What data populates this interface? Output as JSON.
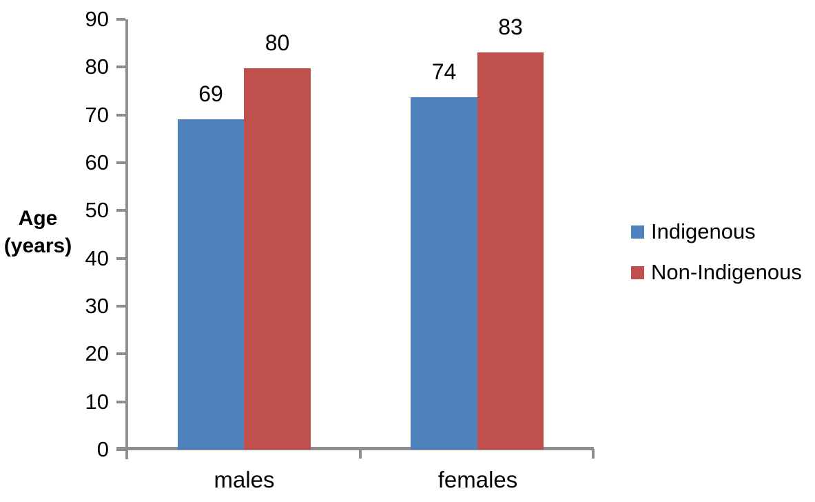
{
  "chart_data": {
    "type": "bar",
    "title": "",
    "categories": [
      "males",
      "females"
    ],
    "series": [
      {
        "name": "Indigenous",
        "color": "#4F81BD",
        "values": [
          69.1,
          73.7
        ],
        "data_labels": [
          "69",
          "74"
        ]
      },
      {
        "name": "Non-Indigenous",
        "color": "#C0504D",
        "values": [
          79.7,
          83.1
        ],
        "data_labels": [
          "80",
          "83"
        ]
      }
    ],
    "xlabel": "",
    "ylabel": "Age (years)",
    "ylabel_lines": [
      "Age",
      "(years)"
    ],
    "ylim": [
      0,
      90
    ],
    "y_tick_step": 10,
    "y_tick_labels": [
      "0",
      "10",
      "20",
      "30",
      "40",
      "50",
      "60",
      "70",
      "80",
      "90"
    ],
    "grid": false,
    "legend_position": "right",
    "axis_color": "#8E8E8E",
    "text_color": "#000000",
    "background_color": "#FFFFFF"
  }
}
